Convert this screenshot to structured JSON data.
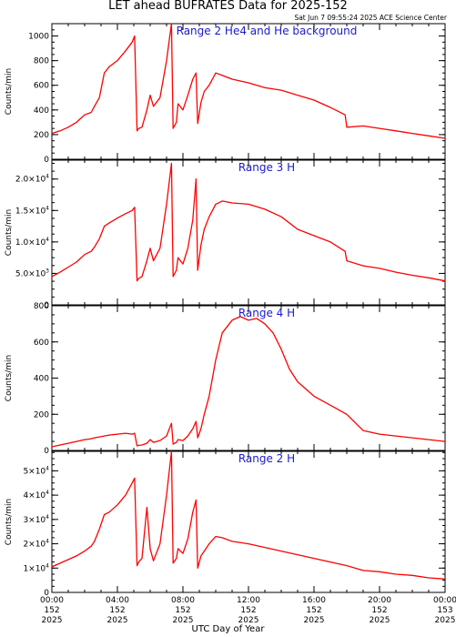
{
  "header": {
    "title": "LET ahead BUFRATES Data for 2025-152",
    "stamp": "Sat Jun  7 09:55:24 2025 ACE Science Center"
  },
  "chart_data": [
    {
      "type": "line",
      "title": "Range 2 He4 and He background",
      "ylabel": "Counts/min",
      "ylim": [
        0,
        1100
      ],
      "yticks": [
        {
          "v": 0,
          "t": "0"
        },
        {
          "v": 200,
          "t": "200"
        },
        {
          "v": 400,
          "t": "400"
        },
        {
          "v": 600,
          "t": "600"
        },
        {
          "v": 800,
          "t": "800"
        },
        {
          "v": 1000,
          "t": "1000"
        }
      ],
      "series": [
        {
          "x": [
            0,
            0.5,
            1,
            1.5,
            2,
            2.4,
            2.6,
            2.9,
            3.2,
            3.5,
            4,
            4.5,
            4.9,
            5.05,
            5.2,
            5.3,
            5.5,
            5.8,
            6,
            6.2,
            6.6,
            7,
            7.3,
            7.4,
            7.6,
            7.7,
            8,
            8.3,
            8.6,
            8.8,
            8.9,
            9.1,
            9.3,
            9.6,
            10,
            10.4,
            11,
            12,
            13,
            14,
            15,
            16,
            17,
            17.9,
            18,
            19,
            20,
            21,
            22,
            23,
            24
          ],
          "y": [
            210,
            230,
            260,
            300,
            360,
            380,
            430,
            500,
            700,
            750,
            800,
            880,
            950,
            1000,
            230,
            250,
            260,
            400,
            520,
            430,
            500,
            800,
            1100,
            250,
            300,
            450,
            400,
            520,
            650,
            700,
            290,
            460,
            550,
            600,
            700,
            680,
            650,
            620,
            580,
            560,
            520,
            480,
            420,
            360,
            260,
            270,
            250,
            230,
            210,
            190,
            170
          ]
        }
      ]
    },
    {
      "type": "line",
      "title": "Range 3 H",
      "ylabel": "Counts/min",
      "ylim": [
        0,
        23000
      ],
      "yticks": [
        {
          "v": 0,
          "t": "0"
        },
        {
          "v": 5000,
          "m": "5.0",
          "e": "3"
        },
        {
          "v": 10000,
          "m": "1.0",
          "e": "4"
        },
        {
          "v": 15000,
          "m": "1.5",
          "e": "4"
        },
        {
          "v": 20000,
          "m": "2.0",
          "e": "4"
        }
      ],
      "series": [
        {
          "x": [
            0,
            0.5,
            1,
            1.5,
            2,
            2.4,
            2.6,
            2.9,
            3.2,
            3.5,
            4,
            4.5,
            4.9,
            5.05,
            5.2,
            5.3,
            5.5,
            5.8,
            6,
            6.2,
            6.6,
            7,
            7.3,
            7.4,
            7.6,
            7.7,
            8,
            8.3,
            8.6,
            8.8,
            8.9,
            9.1,
            9.3,
            9.6,
            10,
            10.4,
            11,
            12,
            13,
            14,
            15,
            16,
            17,
            17.9,
            18,
            19,
            20,
            21,
            22,
            23,
            24
          ],
          "y": [
            4500,
            5200,
            6000,
            6800,
            8000,
            8500,
            9200,
            10500,
            12500,
            13000,
            13800,
            14500,
            15000,
            15500,
            3800,
            4200,
            4500,
            7000,
            9000,
            7000,
            9000,
            16000,
            22500,
            4500,
            5500,
            7500,
            6500,
            9000,
            13500,
            20000,
            5500,
            9500,
            12000,
            14000,
            16000,
            16500,
            16200,
            16000,
            15200,
            14000,
            12000,
            11000,
            10000,
            8500,
            7000,
            6200,
            5800,
            5200,
            4700,
            4300,
            3800
          ]
        }
      ]
    },
    {
      "type": "line",
      "title": "Range 4 H",
      "ylabel": "Counts/min",
      "ylim": [
        0,
        800
      ],
      "yticks": [
        {
          "v": 0,
          "t": "0"
        },
        {
          "v": 200,
          "t": "200"
        },
        {
          "v": 400,
          "t": "400"
        },
        {
          "v": 600,
          "t": "600"
        },
        {
          "v": 800,
          "t": "800"
        }
      ],
      "series": [
        {
          "x": [
            0,
            0.5,
            1,
            1.5,
            2,
            2.4,
            2.6,
            2.9,
            3.2,
            3.5,
            4,
            4.5,
            4.9,
            5.05,
            5.2,
            5.3,
            5.5,
            5.8,
            6,
            6.2,
            6.6,
            7,
            7.3,
            7.4,
            7.6,
            7.7,
            8,
            8.3,
            8.6,
            8.8,
            8.9,
            9.1,
            9.3,
            9.6,
            10,
            10.4,
            11,
            11.5,
            12,
            12.5,
            13,
            13.5,
            14,
            14.5,
            15,
            16,
            17,
            18,
            19,
            20,
            21,
            22,
            23,
            24
          ],
          "y": [
            20,
            30,
            40,
            50,
            60,
            65,
            70,
            75,
            80,
            85,
            90,
            95,
            90,
            95,
            25,
            28,
            30,
            40,
            60,
            45,
            55,
            80,
            150,
            35,
            45,
            60,
            55,
            80,
            120,
            160,
            70,
            120,
            200,
            300,
            500,
            650,
            720,
            740,
            720,
            730,
            700,
            650,
            560,
            450,
            380,
            300,
            250,
            200,
            110,
            90,
            80,
            70,
            60,
            50
          ]
        }
      ]
    },
    {
      "type": "line",
      "title": "Range 2 H",
      "ylabel": "Counts/min",
      "xlabel": "UTC Day of Year",
      "ylim": [
        0,
        58000
      ],
      "yticks": [
        {
          "v": 0,
          "t": "0"
        },
        {
          "v": 10000,
          "m": "1",
          "e": "4"
        },
        {
          "v": 20000,
          "m": "2",
          "e": "4"
        },
        {
          "v": 30000,
          "m": "3",
          "e": "4"
        },
        {
          "v": 40000,
          "m": "4",
          "e": "4"
        },
        {
          "v": 50000,
          "m": "5",
          "e": "4"
        }
      ],
      "series": [
        {
          "x": [
            0,
            0.5,
            1,
            1.5,
            2,
            2.4,
            2.6,
            2.9,
            3.2,
            3.5,
            4,
            4.5,
            4.9,
            5.05,
            5.2,
            5.3,
            5.5,
            5.8,
            6,
            6.2,
            6.6,
            7,
            7.3,
            7.4,
            7.6,
            7.7,
            8,
            8.3,
            8.6,
            8.8,
            8.9,
            9.1,
            9.3,
            9.6,
            10,
            10.4,
            11,
            12,
            13,
            14,
            15,
            16,
            17,
            18,
            19,
            20,
            21,
            22,
            23,
            24
          ],
          "y": [
            10500,
            12000,
            13500,
            15000,
            17000,
            19000,
            21000,
            26000,
            32000,
            33000,
            36000,
            40000,
            45000,
            47000,
            11000,
            12500,
            14000,
            35000,
            18000,
            13000,
            20000,
            40000,
            58000,
            12000,
            14000,
            18000,
            16000,
            22000,
            33000,
            38000,
            10000,
            15000,
            17000,
            20000,
            23000,
            22500,
            21000,
            20000,
            18500,
            17000,
            15500,
            14000,
            12500,
            11000,
            9000,
            8500,
            7500,
            7000,
            6000,
            5500
          ]
        }
      ]
    }
  ],
  "x_axis": {
    "xlim": [
      0,
      24
    ],
    "ticks": [
      {
        "v": 0,
        "time": "00:00",
        "doy": "152",
        "year": "2025"
      },
      {
        "v": 4,
        "time": "04:00",
        "doy": "152",
        "year": "2025"
      },
      {
        "v": 8,
        "time": "08:00",
        "doy": "152",
        "year": "2025"
      },
      {
        "v": 12,
        "time": "12:00",
        "doy": "152",
        "year": "2025"
      },
      {
        "v": 16,
        "time": "16:00",
        "doy": "152",
        "year": "2025"
      },
      {
        "v": 20,
        "time": "20:00",
        "doy": "152",
        "year": "2025"
      },
      {
        "v": 24,
        "time": "00:00",
        "doy": "153",
        "year": "2025"
      }
    ],
    "label": "UTC Day of Year"
  }
}
